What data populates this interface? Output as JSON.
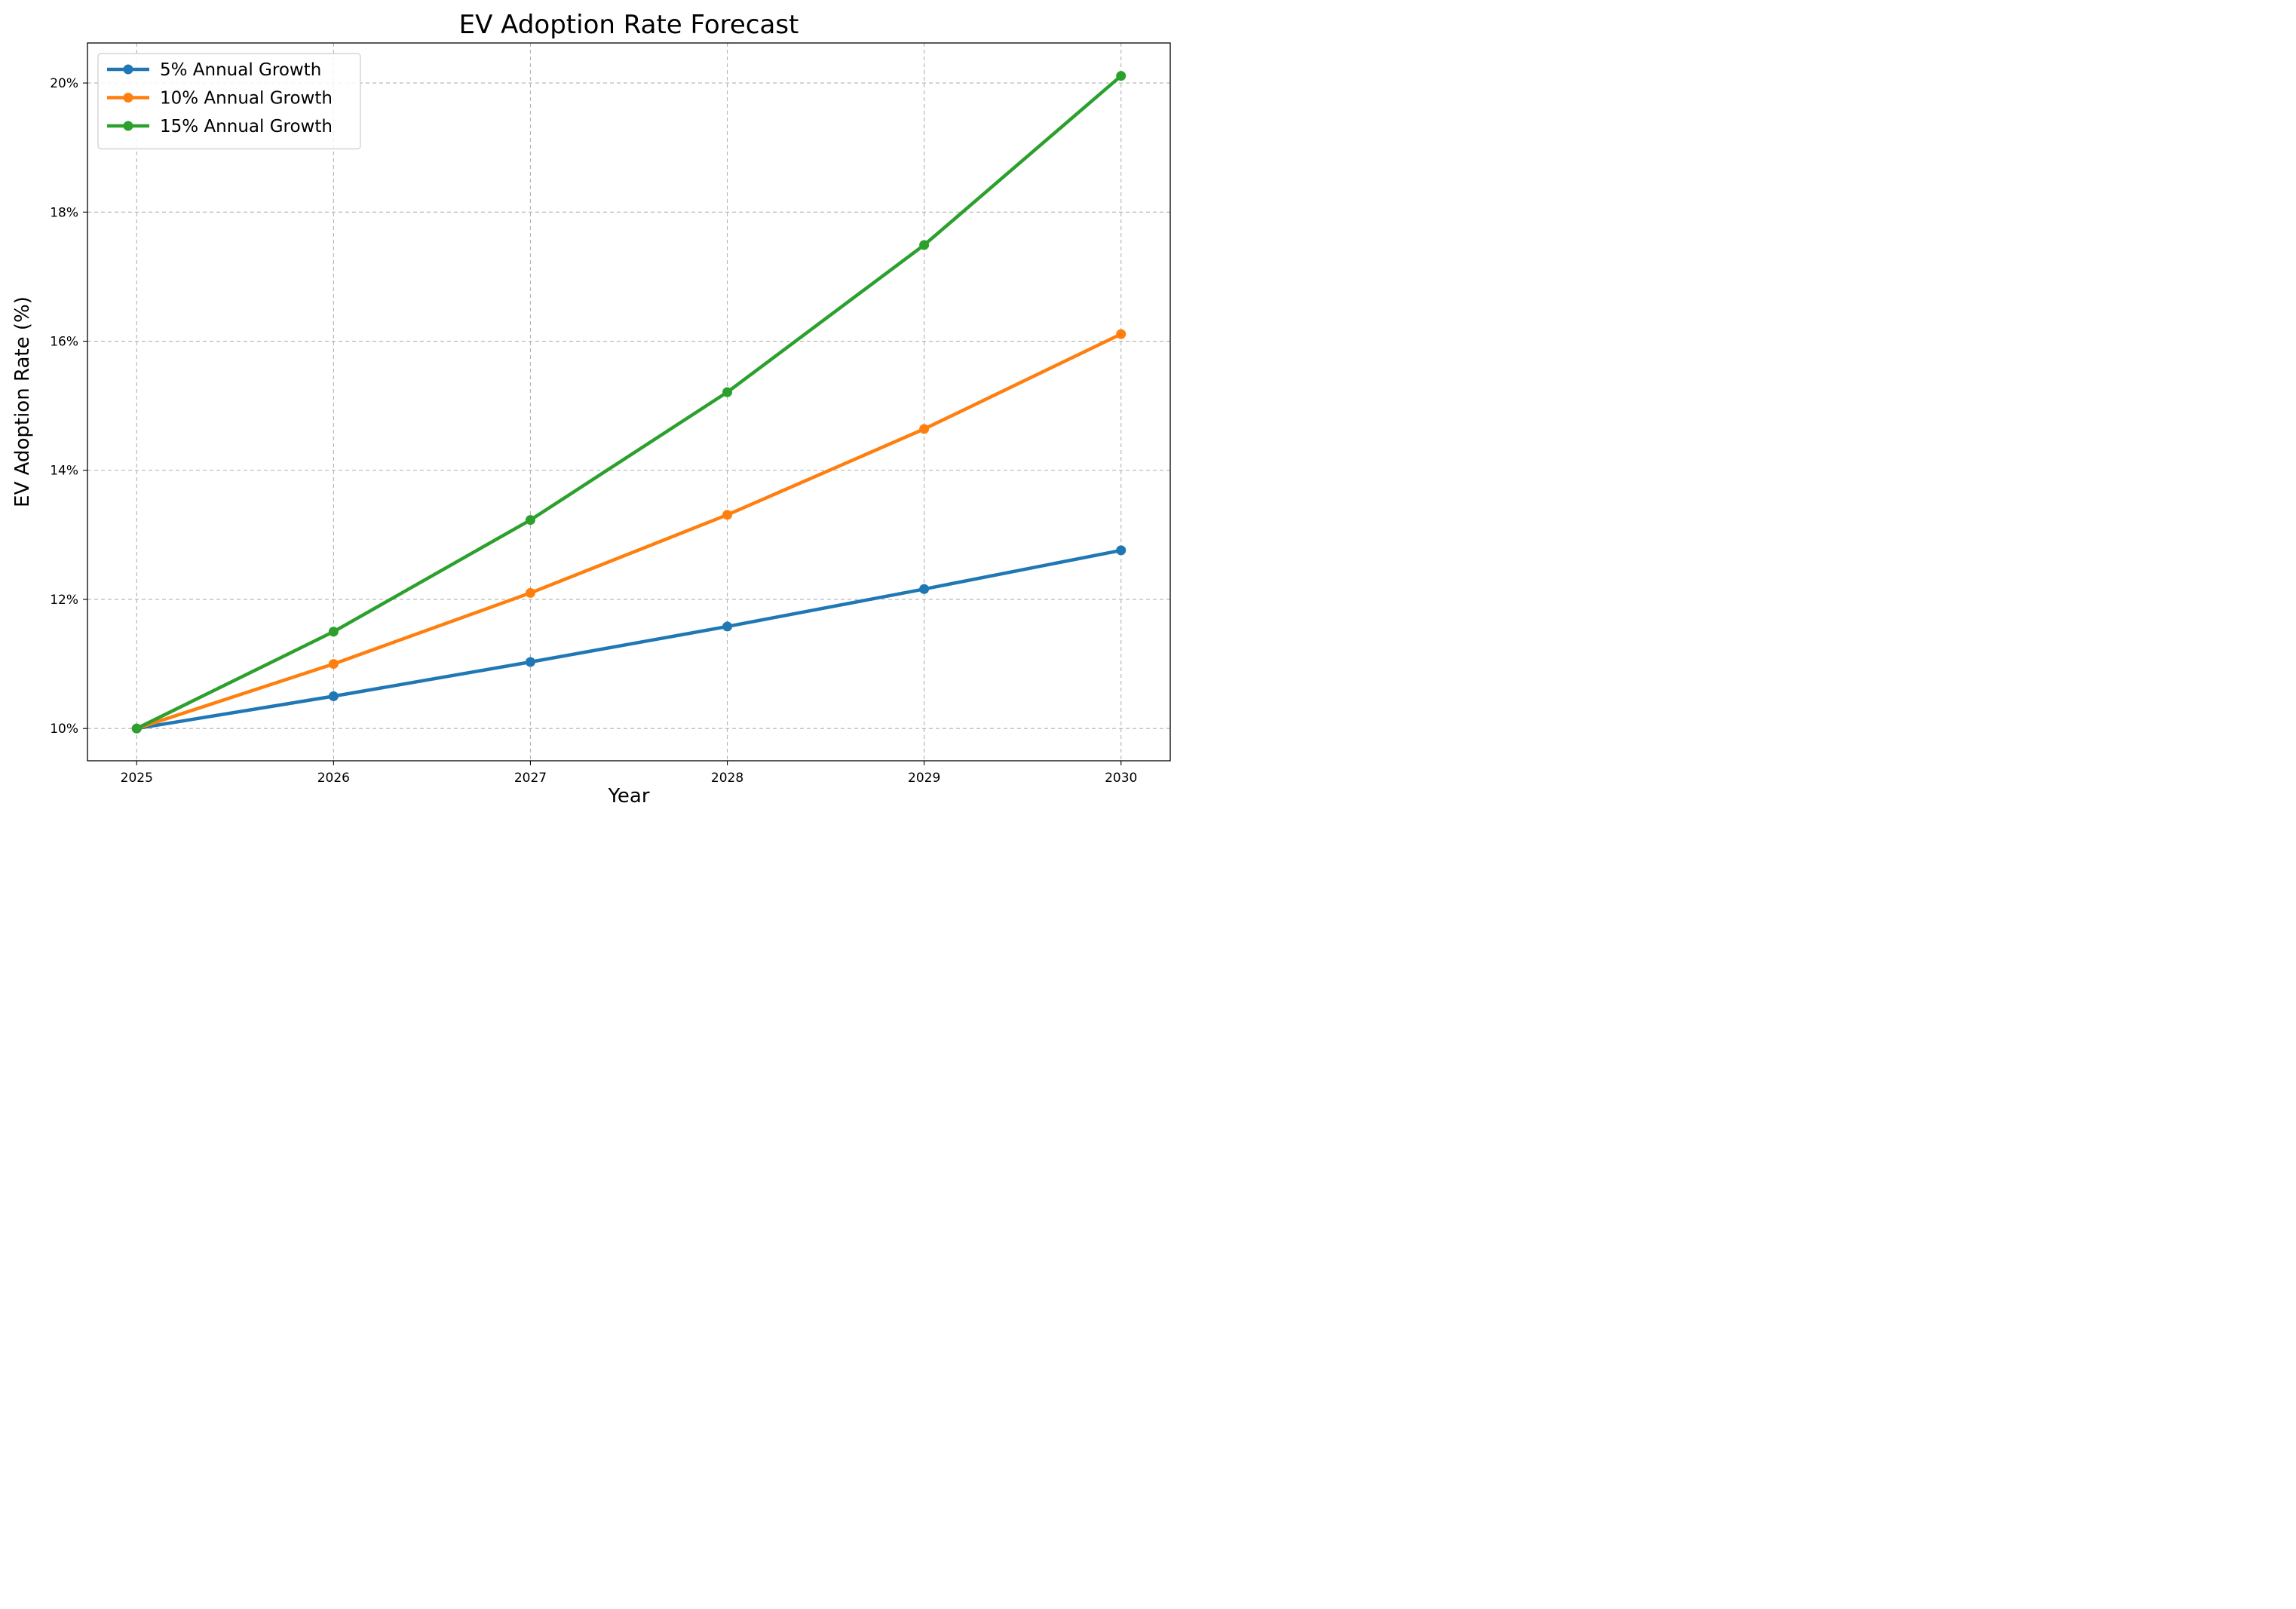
{
  "chart_data": {
    "type": "line",
    "title": "EV Adoption Rate Forecast",
    "xlabel": "Year",
    "ylabel": "EV Adoption Rate (%)",
    "x": [
      2025,
      2026,
      2027,
      2028,
      2029,
      2030
    ],
    "x_tick_labels": [
      "2025",
      "2026",
      "2027",
      "2028",
      "2029",
      "2030"
    ],
    "xlim": [
      2024.75,
      2030.25
    ],
    "ylim": [
      9.5,
      20.62
    ],
    "y_ticks": [
      10,
      12,
      14,
      16,
      18,
      20
    ],
    "y_tick_labels": [
      "10%",
      "12%",
      "14%",
      "16%",
      "18%",
      "20%"
    ],
    "grid": true,
    "grid_style": "dashed",
    "legend_position": "upper-left",
    "series": [
      {
        "name": "5% Annual Growth",
        "color": "#1f77b4",
        "values": [
          10.0,
          10.5,
          11.03,
          11.58,
          12.16,
          12.76
        ]
      },
      {
        "name": "10% Annual Growth",
        "color": "#ff7f0e",
        "values": [
          10.0,
          11.0,
          12.1,
          13.31,
          14.64,
          16.11
        ]
      },
      {
        "name": "15% Annual Growth",
        "color": "#2ca02c",
        "values": [
          10.0,
          11.5,
          13.23,
          15.21,
          17.49,
          20.11
        ]
      }
    ]
  }
}
